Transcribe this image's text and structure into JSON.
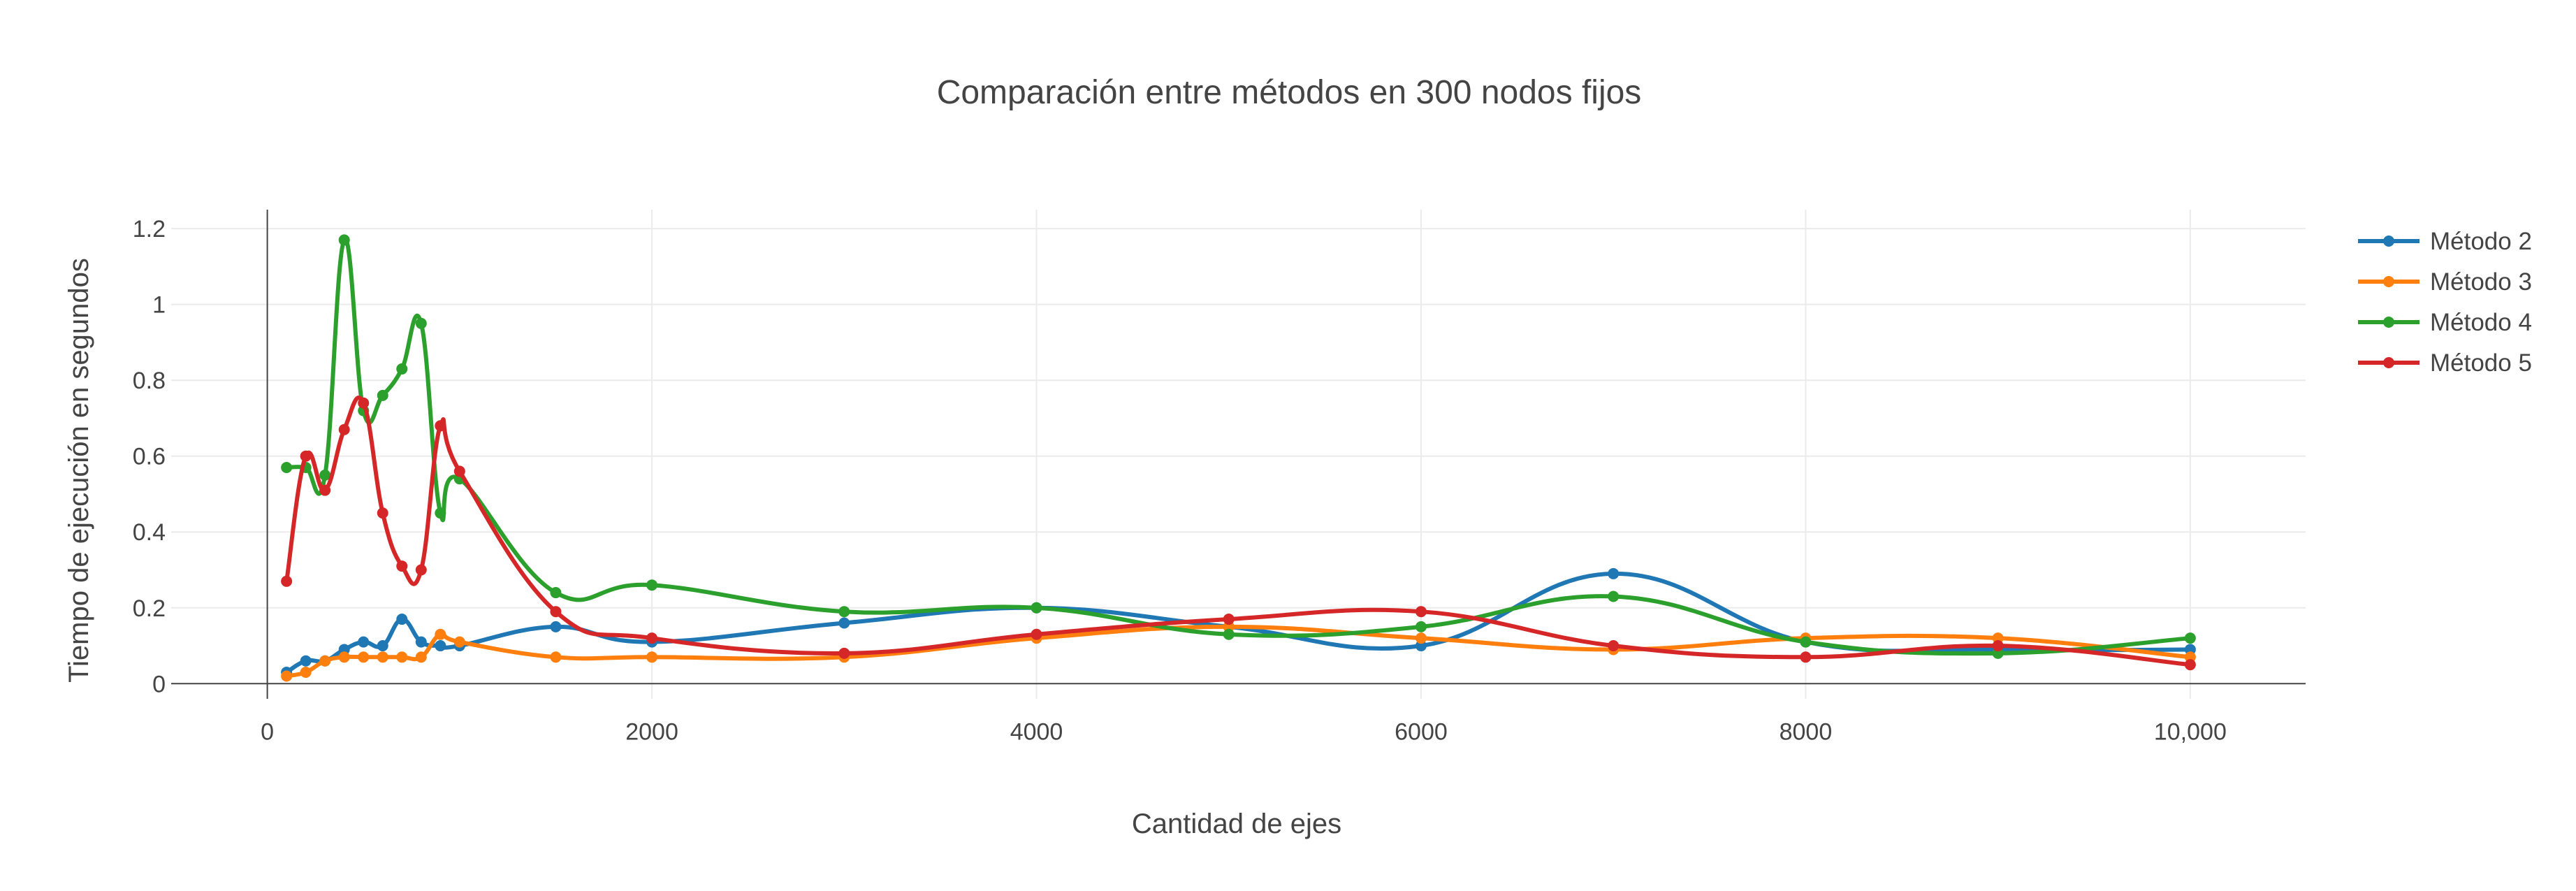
{
  "chart_data": {
    "type": "line",
    "title": "Comparación entre métodos en 300 nodos fijos",
    "xlabel": "Cantidad de ejes",
    "ylabel": "Tiempo de ejecución en segundos",
    "xlim": [
      -500,
      10600
    ],
    "ylim": [
      -0.04,
      1.25
    ],
    "x_ticks": [
      0,
      2000,
      4000,
      6000,
      8000,
      10000
    ],
    "x_tick_labels": [
      "0",
      "2000",
      "4000",
      "6000",
      "8000",
      "10,000"
    ],
    "y_ticks": [
      0,
      0.2,
      0.4,
      0.6,
      0.8,
      1,
      1.2
    ],
    "y_tick_labels": [
      "0",
      "0.2",
      "0.4",
      "0.6",
      "0.8",
      "1",
      "1.2"
    ],
    "grid": true,
    "legend_position": "top-right",
    "x": [
      100,
      200,
      300,
      400,
      500,
      600,
      700,
      800,
      900,
      1000,
      1500,
      2000,
      3000,
      4000,
      5000,
      6000,
      7000,
      8000,
      9000,
      10000
    ],
    "series": [
      {
        "name": "Método 2",
        "color": "#1f77b4",
        "values": [
          0.03,
          0.06,
          0.06,
          0.09,
          0.11,
          0.1,
          0.17,
          0.11,
          0.1,
          0.1,
          0.15,
          0.11,
          0.16,
          0.2,
          0.15,
          0.1,
          0.29,
          0.11,
          0.09,
          0.09
        ]
      },
      {
        "name": "Método 3",
        "color": "#ff7f0e",
        "values": [
          0.02,
          0.03,
          0.06,
          0.07,
          0.07,
          0.07,
          0.07,
          0.07,
          0.13,
          0.11,
          0.07,
          0.07,
          0.07,
          0.12,
          0.15,
          0.12,
          0.09,
          0.12,
          0.12,
          0.07
        ]
      },
      {
        "name": "Método 4",
        "color": "#2ca02c",
        "values": [
          0.57,
          0.57,
          0.55,
          1.17,
          0.72,
          0.76,
          0.83,
          0.95,
          0.45,
          0.54,
          0.24,
          0.26,
          0.19,
          0.2,
          0.13,
          0.15,
          0.23,
          0.11,
          0.08,
          0.12
        ]
      },
      {
        "name": "Método 5",
        "color": "#d62728",
        "values": [
          0.27,
          0.6,
          0.51,
          0.67,
          0.74,
          0.45,
          0.31,
          0.3,
          0.68,
          0.56,
          0.19,
          0.12,
          0.08,
          0.13,
          0.17,
          0.19,
          0.1,
          0.07,
          0.1,
          0.05
        ]
      }
    ]
  }
}
